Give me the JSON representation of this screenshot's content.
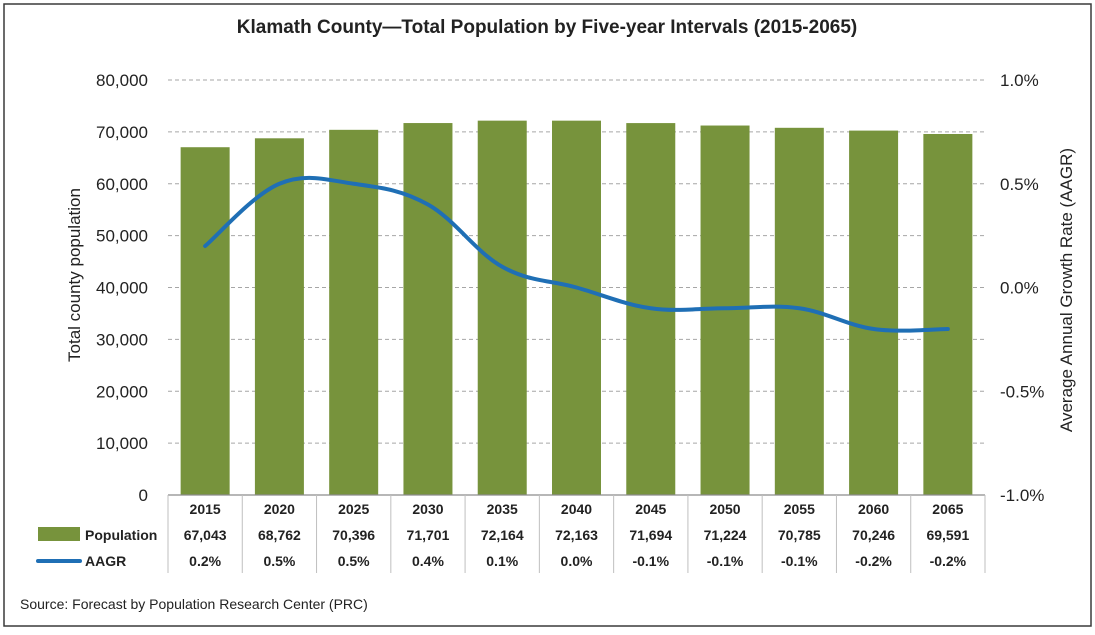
{
  "chart_data": {
    "type": "bar",
    "title": "Klamath County—Total Population by Five-year Intervals (2015-2065)",
    "categories": [
      "2015",
      "2020",
      "2025",
      "2030",
      "2035",
      "2040",
      "2045",
      "2050",
      "2055",
      "2060",
      "2065"
    ],
    "series": [
      {
        "name": "Population",
        "type": "bar",
        "axis": "left",
        "color": "#77933c",
        "values": [
          67043,
          68762,
          70396,
          71701,
          72164,
          72163,
          71694,
          71224,
          70785,
          70246,
          69591
        ]
      },
      {
        "name": "AAGR",
        "type": "line",
        "axis": "right",
        "color": "#1f6fb5",
        "values": [
          0.2,
          0.5,
          0.5,
          0.4,
          0.1,
          0.0,
          -0.1,
          -0.1,
          -0.1,
          -0.2,
          -0.2
        ]
      }
    ],
    "ylabel": "Total county population",
    "y2label": "Average Annual Growth Rate (AAGR)",
    "ylim": [
      0,
      80000
    ],
    "y2lim": [
      -1.0,
      1.0
    ],
    "yticks": [
      "0",
      "10,000",
      "20,000",
      "30,000",
      "40,000",
      "50,000",
      "60,000",
      "70,000",
      "80,000"
    ],
    "y2ticks": [
      "-1.0%",
      "-0.5%",
      "0.0%",
      "0.5%",
      "1.0%"
    ],
    "table": {
      "population_labels": [
        "67,043",
        "68,762",
        "70,396",
        "71,701",
        "72,164",
        "72,163",
        "71,694",
        "71,224",
        "70,785",
        "70,246",
        "69,591"
      ],
      "aagr_labels": [
        "0.2%",
        "0.5%",
        "0.5%",
        "0.4%",
        "0.1%",
        "0.0%",
        "-0.1%",
        "-0.1%",
        "-0.1%",
        "-0.2%",
        "-0.2%"
      ]
    },
    "grid": true,
    "legend": "data-table"
  },
  "source": "Source: Forecast by Population Research Center (PRC)",
  "colors": {
    "bar": "#77933c",
    "line": "#1f6fb5",
    "grid": "#a6a6a6"
  }
}
